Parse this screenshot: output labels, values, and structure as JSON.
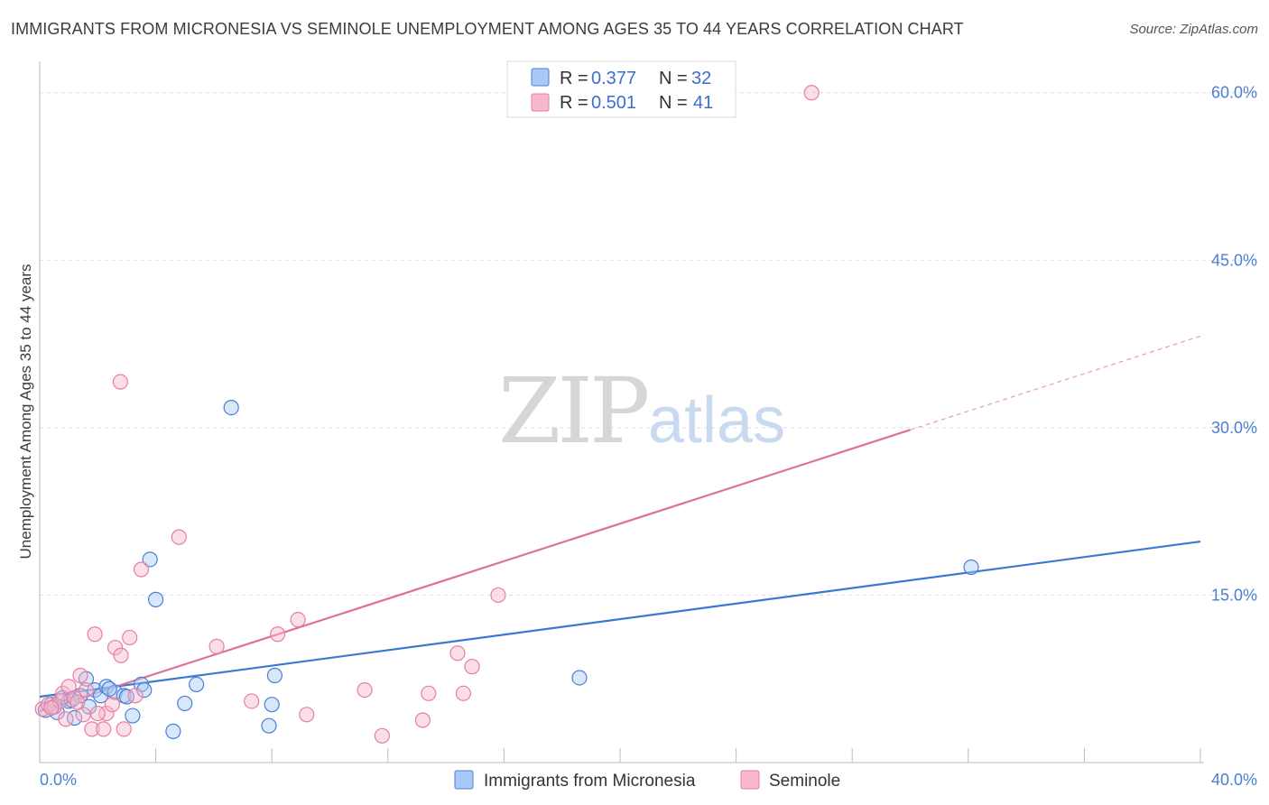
{
  "title": "IMMIGRANTS FROM MICRONESIA VS SEMINOLE UNEMPLOYMENT AMONG AGES 35 TO 44 YEARS CORRELATION CHART",
  "source": "Source: ZipAtlas.com",
  "watermark": {
    "zip": "ZIP",
    "atlas": "atlas"
  },
  "colors": {
    "blue_fill": "#aac9f5",
    "blue_stroke": "#4a7fd4",
    "blue_line": "#3a78d4",
    "pink_fill": "#f7b8cc",
    "pink_stroke": "#e77fa1",
    "pink_line": "#e0709a",
    "grid": "#dddddd",
    "axis_text": "#4a7fd4"
  },
  "chart_data": {
    "type": "scatter",
    "title": "IMMIGRANTS FROM MICRONESIA VS SEMINOLE UNEMPLOYMENT AMONG AGES 35 TO 44 YEARS CORRELATION CHART",
    "xlabel": "",
    "ylabel": "Unemployment Among Ages 35 to 44 years",
    "xlim": [
      0,
      40
    ],
    "ylim": [
      0,
      62
    ],
    "x_tick_labels": [
      "0.0%",
      "40.0%"
    ],
    "y_ticks": [
      15,
      30,
      45,
      60
    ],
    "y_tick_labels": [
      "15.0%",
      "30.0%",
      "45.0%",
      "60.0%"
    ],
    "grid": true,
    "legend_stats": [
      {
        "r_label": "R =",
        "r": "0.377",
        "n_label": "N =",
        "n": "32"
      },
      {
        "r_label": "R =",
        "r": "0.501",
        "n_label": "N =",
        "n": "41"
      }
    ],
    "series": [
      {
        "name": "Immigrants from Micronesia",
        "color": "blue",
        "points": [
          [
            0.2,
            4.7
          ],
          [
            0.4,
            5.2
          ],
          [
            0.6,
            4.5
          ],
          [
            0.8,
            5.8
          ],
          [
            1.0,
            5.5
          ],
          [
            1.2,
            4.0
          ],
          [
            1.4,
            6.0
          ],
          [
            1.6,
            7.5
          ],
          [
            1.7,
            5.0
          ],
          [
            1.9,
            6.5
          ],
          [
            2.1,
            6.0
          ],
          [
            2.3,
            6.8
          ],
          [
            2.6,
            6.3
          ],
          [
            2.9,
            6.0
          ],
          [
            3.2,
            4.2
          ],
          [
            3.5,
            7.0
          ],
          [
            3.6,
            6.5
          ],
          [
            3.8,
            18.2
          ],
          [
            4.0,
            14.6
          ],
          [
            4.6,
            2.8
          ],
          [
            5.0,
            5.3
          ],
          [
            5.4,
            7.0
          ],
          [
            6.6,
            31.8
          ],
          [
            7.9,
            3.3
          ],
          [
            8.0,
            5.2
          ],
          [
            8.1,
            7.8
          ],
          [
            18.6,
            7.6
          ],
          [
            32.1,
            17.5
          ],
          [
            0.5,
            5.0
          ],
          [
            1.1,
            5.6
          ],
          [
            2.4,
            6.6
          ],
          [
            3.0,
            5.9
          ]
        ],
        "trend": {
          "x": [
            0,
            40
          ],
          "y": [
            5.9,
            19.8
          ],
          "dashed_from": null
        }
      },
      {
        "name": "Seminole",
        "color": "pink",
        "points": [
          [
            0.1,
            4.8
          ],
          [
            0.3,
            5.2
          ],
          [
            0.5,
            5.0
          ],
          [
            0.7,
            5.5
          ],
          [
            0.8,
            6.2
          ],
          [
            1.0,
            6.8
          ],
          [
            1.2,
            5.8
          ],
          [
            1.4,
            7.8
          ],
          [
            1.5,
            4.3
          ],
          [
            1.6,
            6.5
          ],
          [
            1.8,
            3.0
          ],
          [
            1.9,
            11.5
          ],
          [
            2.2,
            3.0
          ],
          [
            2.3,
            4.4
          ],
          [
            2.5,
            5.2
          ],
          [
            2.6,
            10.3
          ],
          [
            2.8,
            9.6
          ],
          [
            2.9,
            3.0
          ],
          [
            3.1,
            11.2
          ],
          [
            3.3,
            6.0
          ],
          [
            3.5,
            17.3
          ],
          [
            4.8,
            20.2
          ],
          [
            6.1,
            10.4
          ],
          [
            7.3,
            5.5
          ],
          [
            8.2,
            11.5
          ],
          [
            8.9,
            12.8
          ],
          [
            9.2,
            4.3
          ],
          [
            11.2,
            6.5
          ],
          [
            11.8,
            2.4
          ],
          [
            13.2,
            3.8
          ],
          [
            13.4,
            6.2
          ],
          [
            14.4,
            9.8
          ],
          [
            14.6,
            6.2
          ],
          [
            14.9,
            8.6
          ],
          [
            15.8,
            15.0
          ],
          [
            26.6,
            60.0
          ],
          [
            2.78,
            34.1
          ],
          [
            0.9,
            3.9
          ],
          [
            2.0,
            4.4
          ],
          [
            1.3,
            5.4
          ],
          [
            0.4,
            4.9
          ]
        ],
        "trend": {
          "x": [
            0,
            40
          ],
          "y": [
            4.6,
            38.2
          ],
          "dashed_from": 30
        }
      }
    ]
  }
}
